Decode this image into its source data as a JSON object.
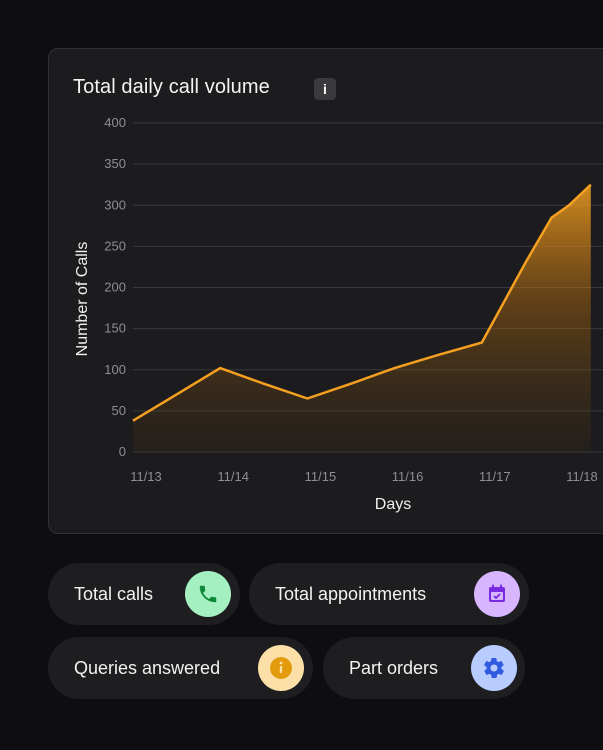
{
  "chart_title": "Total daily call volume",
  "info_label": "i",
  "chart_data": {
    "type": "area",
    "title": "Total daily call volume",
    "xlabel": "Days",
    "ylabel": "Number of Calls",
    "ylim": [
      0,
      400
    ],
    "yticks": [
      "0",
      "50",
      "100",
      "150",
      "200",
      "250",
      "300",
      "350",
      "400"
    ],
    "categories": [
      "11/13",
      "11/14",
      "11/15",
      "11/16",
      "11/17",
      "11/18"
    ],
    "x": [
      0,
      0.5,
      1,
      1.5,
      2,
      2.5,
      3,
      3.5,
      4,
      4.5,
      4.8,
      5,
      5.25
    ],
    "values": [
      38,
      70,
      102,
      83,
      65,
      83,
      102,
      118,
      133,
      230,
      285,
      300,
      325
    ],
    "grid": true,
    "line_color": "#f5a020"
  },
  "chips": [
    {
      "label": "Total calls",
      "icon": "phone-icon",
      "icon_bg": "#a4f0c0",
      "icon_color": "#0f8a3a"
    },
    {
      "label": "Total appointments",
      "icon": "calendar-check-icon",
      "icon_bg": "#d7b6ff",
      "icon_color": "#7a2ae0"
    },
    {
      "label": "Queries answered",
      "icon": "info-circle-icon",
      "icon_bg": "#fde0a8",
      "icon_color": "#e39a0c"
    },
    {
      "label": "Part orders",
      "icon": "gear-icon",
      "icon_bg": "#b9ccff",
      "icon_color": "#2f5be0"
    }
  ]
}
